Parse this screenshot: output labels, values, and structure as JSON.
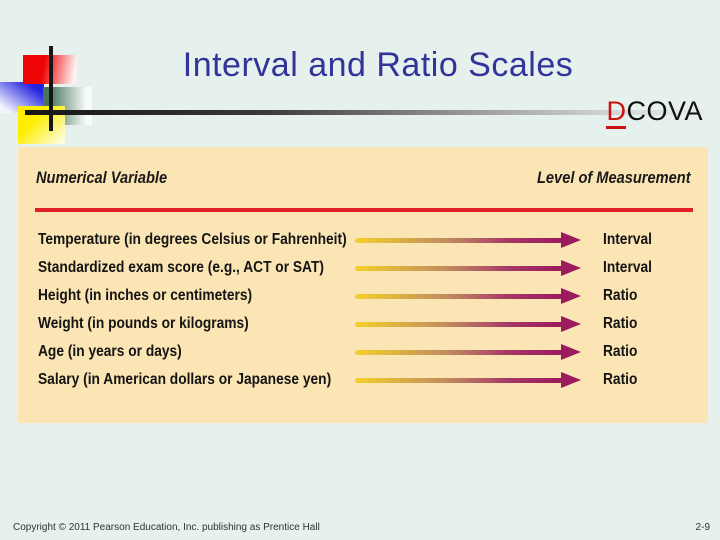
{
  "slide": {
    "title": "Interval and Ratio Scales",
    "dcova": {
      "accent_letter": "D",
      "rest": "COVA"
    },
    "footer": {
      "copyright": "Copyright © 2011 Pearson Education, Inc. publishing as Prentice Hall",
      "page_number": "2-9"
    }
  },
  "table": {
    "headers": {
      "left": "Numerical Variable",
      "right": "Level of Measurement"
    },
    "rows": [
      {
        "variable": "Temperature (in degrees Celsius or Fahrenheit)",
        "level": "Interval"
      },
      {
        "variable": "Standardized exam score (e.g., ACT or SAT)",
        "level": "Interval"
      },
      {
        "variable": "Height (in inches or centimeters)",
        "level": "Ratio"
      },
      {
        "variable": "Weight (in pounds or kilograms)",
        "level": "Ratio"
      },
      {
        "variable": "Age (in years or days)",
        "level": "Ratio"
      },
      {
        "variable": "Salary (in American dollars or Japanese yen)",
        "level": "Ratio"
      }
    ]
  },
  "colors": {
    "background": "#E6F0ED",
    "panel": "#FBE5B4",
    "title": "#333399",
    "divider_red": "#E01F26",
    "arrow_start": "#F2CD2D",
    "arrow_mid": "#C08A60",
    "arrow_end": "#9C1B5D",
    "dcova_accent": "#CC1111",
    "row_text": "#141414",
    "footer_text": "#333333"
  }
}
